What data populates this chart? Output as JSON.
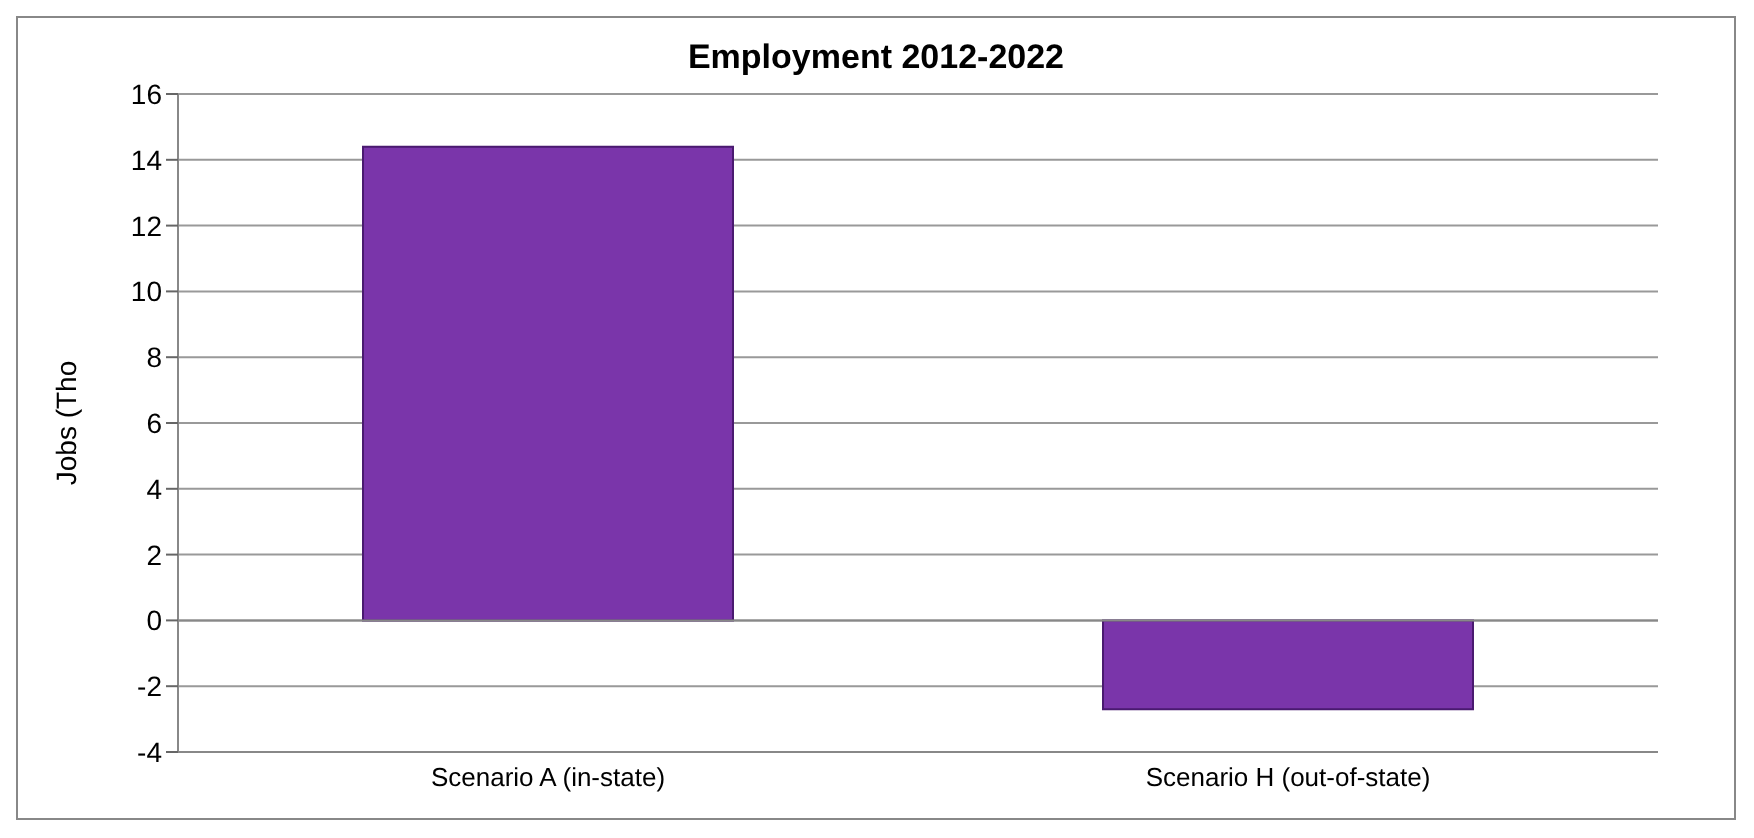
{
  "chart_data": {
    "type": "bar",
    "title": "Employment 2012-2022",
    "ylabel": "Jobs (Tho",
    "categories": [
      "Scenario A (in-state)",
      "Scenario H (out-of-state)"
    ],
    "values": [
      14.4,
      -2.7
    ],
    "color": "#7a35aa",
    "ylim": [
      -4,
      16
    ],
    "yticks": [
      -4,
      -2,
      0,
      2,
      4,
      6,
      8,
      10,
      12,
      14,
      16
    ],
    "grid": "y"
  }
}
